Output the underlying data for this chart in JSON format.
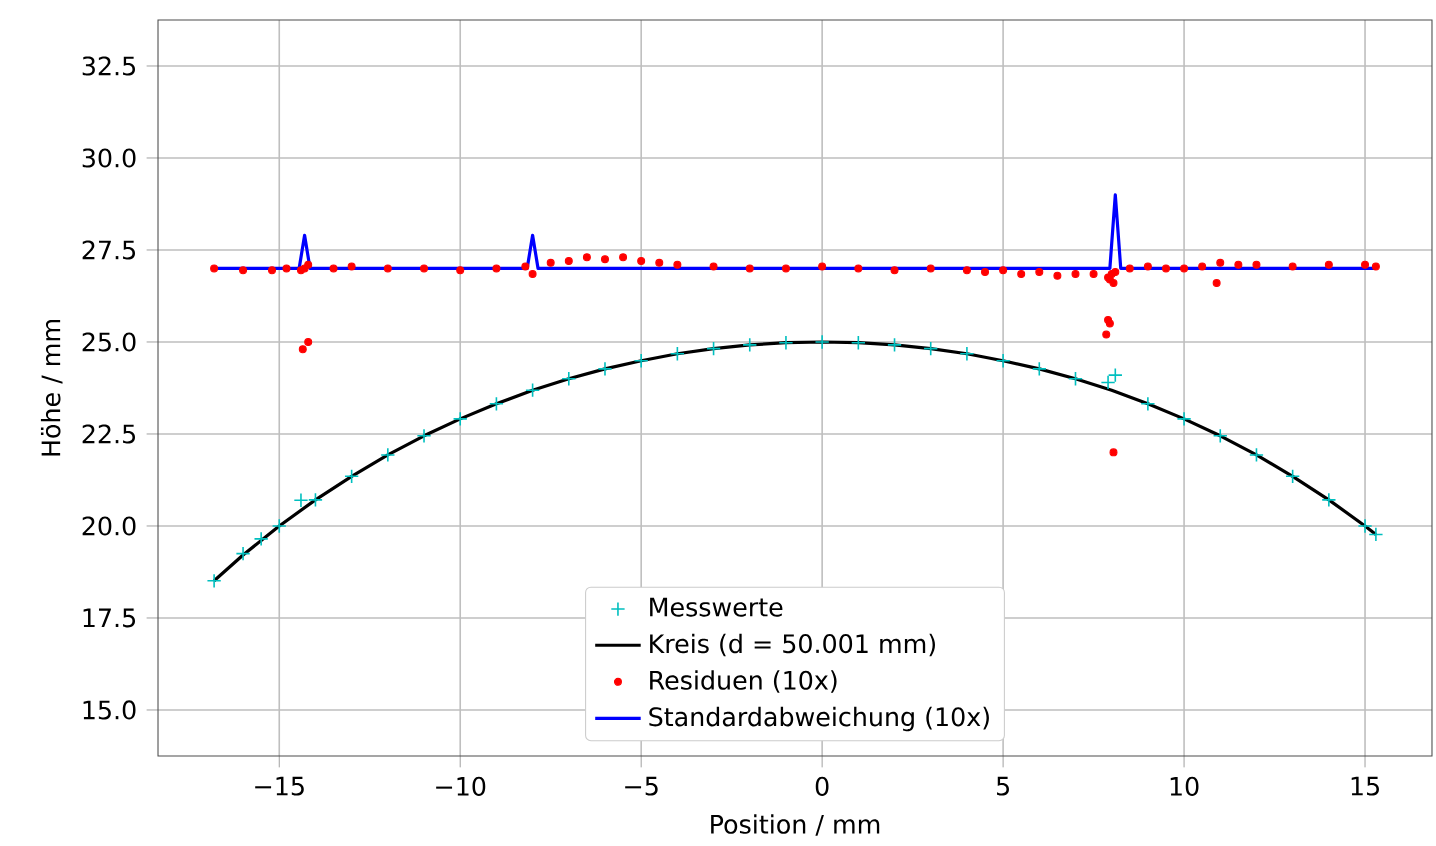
{
  "chart_data": {
    "type": "line",
    "xlabel": "Position / mm",
    "ylabel": "Höhe / mm",
    "xlim": [
      -18.35,
      16.85
    ],
    "ylim": [
      13.75,
      33.75
    ],
    "xticks": [
      {
        "value": -15,
        "label": "−15"
      },
      {
        "value": -10,
        "label": "−10"
      },
      {
        "value": -5,
        "label": "−5"
      },
      0,
      5,
      10,
      15
    ],
    "yticks": [
      {
        "value": 15,
        "label": "15.0"
      },
      17.5,
      {
        "value": 20,
        "label": "20.0"
      },
      22.5,
      {
        "value": 25,
        "label": "25.0"
      },
      27.5,
      {
        "value": 30,
        "label": "30.0"
      },
      32.5
    ],
    "grid": true,
    "legend": "bottom",
    "series": [
      {
        "name": "Messwerte",
        "type": "scatter",
        "marker": "cross",
        "color": "#00bfbf",
        "x": [
          -16.8,
          -16,
          -15.5,
          -15,
          -14.4,
          -14,
          -13,
          -12,
          -11,
          -10,
          -9,
          -8,
          -7,
          -6,
          -5,
          -4,
          -3,
          -2,
          -1,
          0,
          1,
          2,
          3,
          4,
          5,
          6,
          7,
          7.9,
          8.1,
          9,
          10,
          11,
          12,
          13,
          14,
          15,
          15.3
        ],
        "values": [
          18.51,
          19.25,
          19.65,
          20.0,
          20.7,
          20.71,
          21.35,
          21.93,
          22.45,
          22.91,
          23.32,
          23.69,
          24.0,
          24.27,
          24.49,
          24.68,
          24.82,
          24.92,
          24.98,
          25.0,
          24.98,
          24.92,
          24.82,
          24.68,
          24.49,
          24.27,
          24.0,
          23.9,
          24.1,
          23.32,
          22.91,
          22.45,
          21.93,
          21.35,
          20.71,
          20.0,
          19.77
        ]
      },
      {
        "name": "Kreis (d = 50.001 mm)",
        "marker": "none",
        "color": "#000000",
        "x": [
          -16.8,
          -16,
          -15,
          -14,
          -13,
          -12,
          -11,
          -10,
          -9,
          -8,
          -7,
          -6,
          -5,
          -4,
          -3,
          -2,
          -1,
          0,
          1,
          2,
          3,
          4,
          5,
          6,
          7,
          8,
          9,
          10,
          11,
          12,
          13,
          14,
          15,
          15.3
        ],
        "values": [
          18.51,
          19.21,
          20.0,
          20.71,
          21.35,
          21.93,
          22.45,
          22.91,
          23.32,
          23.69,
          24.0,
          24.27,
          24.49,
          24.68,
          24.82,
          24.92,
          24.98,
          25.0,
          24.98,
          24.92,
          24.82,
          24.68,
          24.49,
          24.27,
          24.0,
          23.69,
          23.32,
          22.91,
          22.45,
          21.93,
          21.35,
          20.71,
          20.0,
          19.77
        ]
      },
      {
        "name": "Residuen (10x)",
        "type": "scatter",
        "marker": "circle",
        "color": "#ff0000",
        "x": [
          -16.8,
          -16,
          -15.2,
          -14.8,
          -14.4,
          -14.3,
          -14.2,
          -13.5,
          -13,
          -12,
          -11,
          -10,
          -9,
          -8.2,
          -8.0,
          -7.5,
          -7,
          -6.5,
          -6,
          -5.5,
          -5,
          -4.5,
          -4,
          -3,
          -2,
          -1,
          0,
          1,
          2,
          3,
          4,
          4.5,
          5,
          5.5,
          6,
          6.5,
          7,
          7.5,
          7.9,
          7.95,
          8.0,
          8.05,
          8.1,
          8.5,
          9,
          9.5,
          10,
          10.5,
          10.9,
          11,
          11.5,
          12,
          13,
          14,
          15,
          15.3,
          -14.35,
          -14.2,
          7.9,
          7.95,
          7.85,
          8.05
        ],
        "values": [
          27.0,
          26.95,
          26.95,
          27.0,
          26.95,
          27.0,
          27.1,
          27.0,
          27.05,
          27.0,
          27.0,
          26.95,
          27.0,
          27.05,
          26.85,
          27.15,
          27.2,
          27.3,
          27.25,
          27.3,
          27.2,
          27.15,
          27.1,
          27.05,
          27.0,
          27.0,
          27.05,
          27.0,
          26.95,
          27.0,
          26.95,
          26.9,
          26.95,
          26.85,
          26.9,
          26.8,
          26.85,
          26.85,
          26.75,
          26.7,
          26.85,
          26.6,
          26.9,
          27.0,
          27.05,
          27.0,
          27.0,
          27.05,
          26.6,
          27.15,
          27.1,
          27.1,
          27.05,
          27.1,
          27.1,
          27.05,
          24.8,
          25.0,
          25.6,
          25.5,
          25.2,
          22.0
        ]
      },
      {
        "name": "Standardabweichung (10x)",
        "marker": "none",
        "color": "#0000ff",
        "x": [
          -16.8,
          -14.45,
          -14.3,
          -14.15,
          -8.15,
          -8.0,
          -7.85,
          7.95,
          8.1,
          8.25,
          15.3
        ],
        "values": [
          27.0,
          27.0,
          27.9,
          27.0,
          27.0,
          27.9,
          27.0,
          27.0,
          29.0,
          27.0,
          27.0
        ]
      }
    ]
  }
}
